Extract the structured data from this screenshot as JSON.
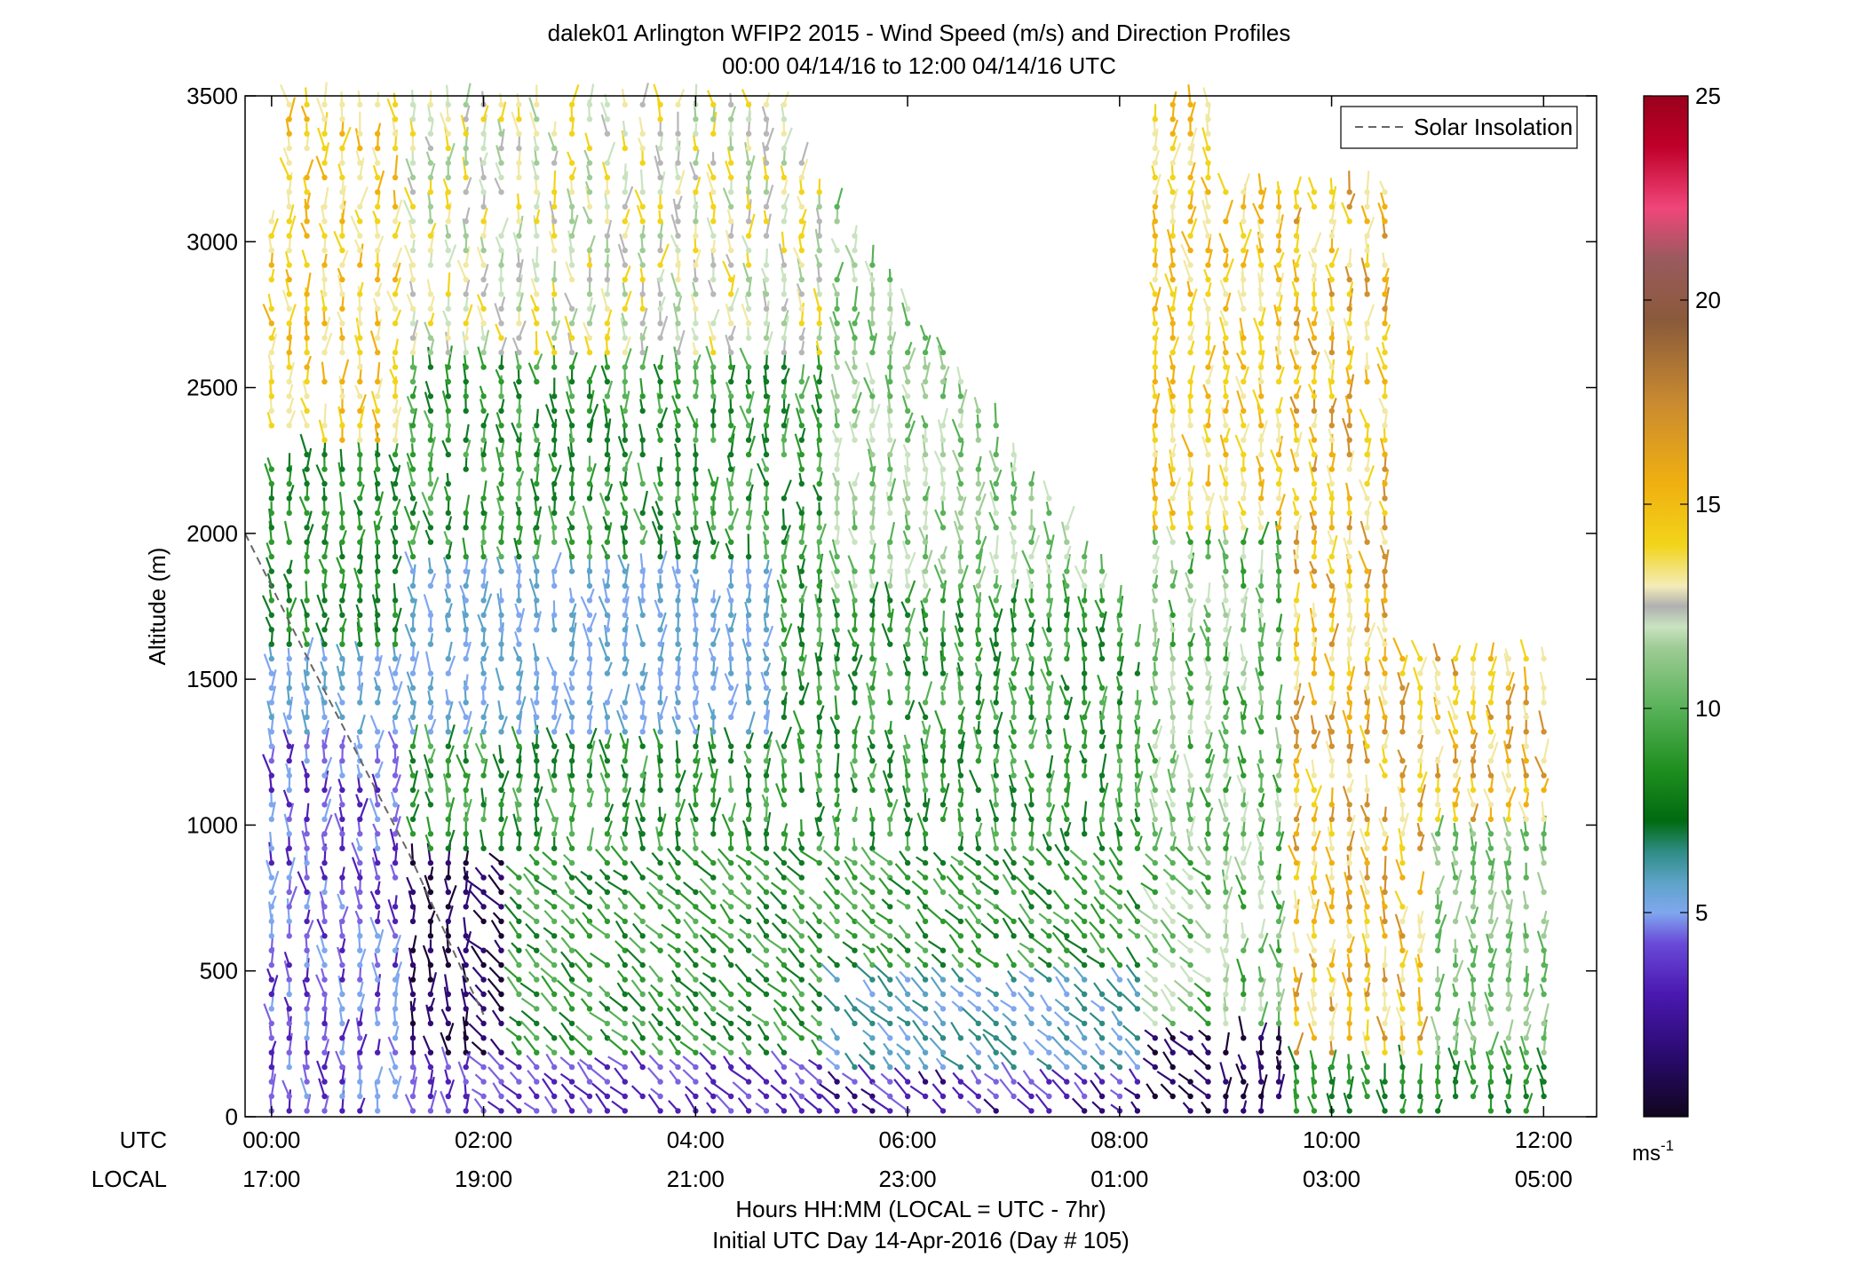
{
  "chart_data": {
    "type": "barb-profile",
    "title_line1": "dalek01 Arlington WFIP2 2015 - Wind Speed (m/s) and Direction Profiles",
    "title_line2": "00:00 04/14/16 to 12:00 04/14/16  UTC",
    "ylabel": "Altitude (m)",
    "xlabel_line1": "Hours HH:MM  (LOCAL = UTC - 7hr)",
    "xlabel_line2": "Initial UTC Day 14-Apr-2016 (Day # 105)",
    "ylim": [
      0,
      3500
    ],
    "yticks": [
      0,
      500,
      1000,
      1500,
      2000,
      2500,
      3000,
      3500
    ],
    "xlim_hours": [
      -0.25,
      12.5
    ],
    "xticks_hours": [
      0,
      2,
      4,
      6,
      8,
      10,
      12
    ],
    "row_label_utc": "UTC",
    "row_label_local": "LOCAL",
    "xtick_labels_utc": [
      "00:00",
      "02:00",
      "04:00",
      "06:00",
      "08:00",
      "10:00",
      "12:00"
    ],
    "xtick_labels_local": [
      "17:00",
      "19:00",
      "21:00",
      "23:00",
      "01:00",
      "03:00",
      "05:00"
    ],
    "legend": {
      "entries": [
        "Solar Insolation"
      ],
      "placement": "top-right"
    },
    "colorbar": {
      "range": [
        0,
        25
      ],
      "ticks": [
        5,
        10,
        15,
        20,
        25
      ],
      "unit_label": "ms",
      "unit_exponent": "-1"
    },
    "solar_insolation": {
      "hours": [
        -0.25,
        0.3,
        0.8,
        1.3,
        1.8,
        2.0
      ],
      "altitude": [
        2000,
        1600,
        1250,
        900,
        500,
        350
      ]
    },
    "colors": {
      "palette": [
        "#1a0533",
        "#2f0a73",
        "#4f20b5",
        "#7d62e0",
        "#7fa7ee",
        "#5da3c8",
        "#2e8c84",
        "#0f7a24",
        "#2c9a2c",
        "#58b258",
        "#9fcc96",
        "#c9e3c0",
        "#b7b7b7",
        "#f1e8a2",
        "#f2d41a",
        "#f0b010",
        "#d0902e",
        "#a3683a",
        "#7f4c33",
        "#aa4a61",
        "#f0467a",
        "#c0002a",
        "#a00020"
      ],
      "legend_line": "#666666"
    }
  }
}
